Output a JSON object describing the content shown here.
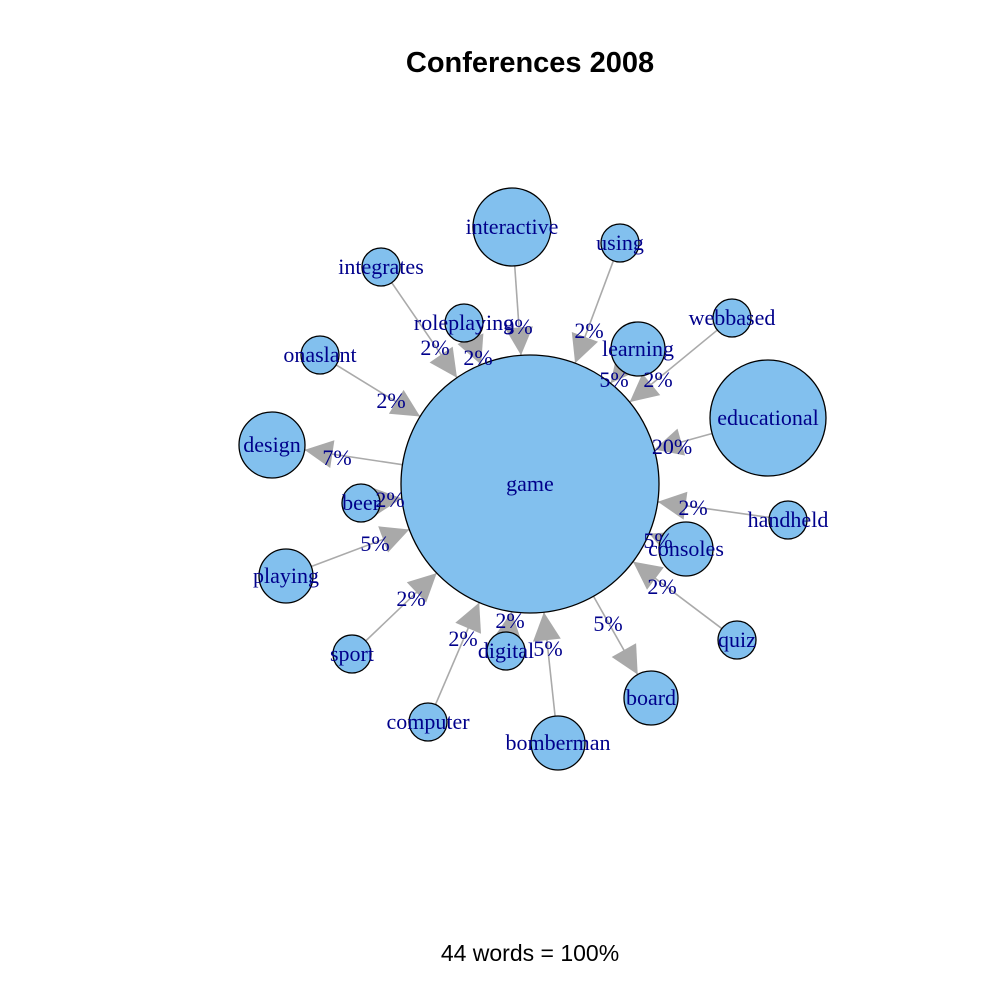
{
  "title": "Conferences 2008",
  "footer": "44 words = 100%",
  "colors": {
    "node_fill": "#82c0ee",
    "node_stroke": "#000000",
    "label": "#00008b",
    "edge": "#aaaaaa",
    "arrow": "#a9a9a9"
  },
  "center": {
    "label": "game"
  },
  "neighbors": [
    {
      "label": "educational",
      "edge_label": "20%",
      "direction": "in"
    },
    {
      "label": "handheld",
      "edge_label": "2%",
      "direction": "in"
    },
    {
      "label": "consoles",
      "edge_label": "5%",
      "direction": "in"
    },
    {
      "label": "quiz",
      "edge_label": "2%",
      "direction": "in"
    },
    {
      "label": "board",
      "edge_label": "5%",
      "direction": "out"
    },
    {
      "label": "bomberman",
      "edge_label": "5%",
      "direction": "in"
    },
    {
      "label": "digital",
      "edge_label": "2%",
      "direction": "in"
    },
    {
      "label": "computer",
      "edge_label": "2%",
      "direction": "in"
    },
    {
      "label": "sport",
      "edge_label": "2%",
      "direction": "in"
    },
    {
      "label": "playing",
      "edge_label": "5%",
      "direction": "in"
    },
    {
      "label": "beer",
      "edge_label": "2%",
      "direction": "in"
    },
    {
      "label": "design",
      "edge_label": "7%",
      "direction": "out"
    },
    {
      "label": "onaslant",
      "edge_label": "2%",
      "direction": "in"
    },
    {
      "label": "integrates",
      "edge_label": "2%",
      "direction": "in"
    },
    {
      "label": "roleplaying",
      "edge_label": "2%",
      "direction": "in"
    },
    {
      "label": "interactive",
      "edge_label": "9%",
      "direction": "in"
    },
    {
      "label": "using",
      "edge_label": "2%",
      "direction": "in"
    },
    {
      "label": "learning",
      "edge_label": "5%",
      "direction": "in"
    },
    {
      "label": "webbased",
      "edge_label": "2%",
      "direction": "in"
    }
  ]
}
